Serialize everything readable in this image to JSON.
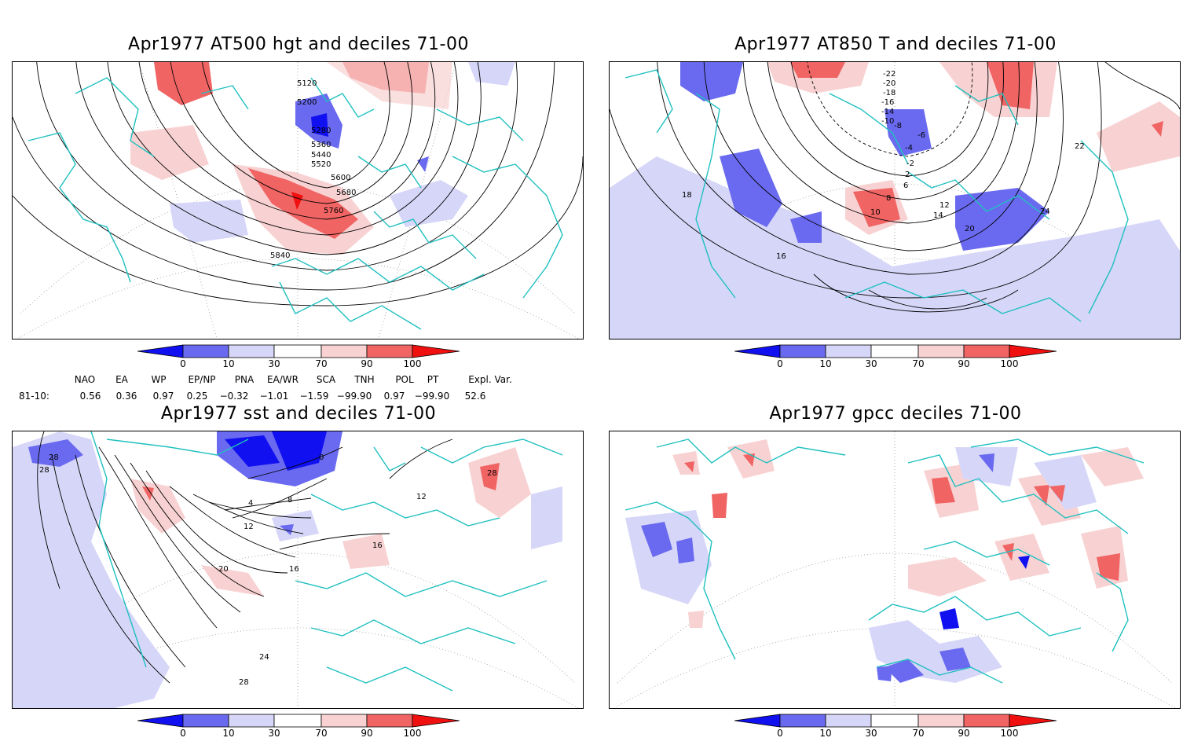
{
  "colors": {
    "dark_blue": "#1010f0",
    "mid_blue": "#6a6af0",
    "light_blue": "#d6d6f8",
    "light_red": "#f8d2d2",
    "mid_red": "#f06464",
    "dark_red": "#f01010",
    "coast": "#20c0c0",
    "contour": "#000000",
    "grid": "#888888"
  },
  "colorbar": {
    "ticks": [
      "0",
      "10",
      "30",
      "70",
      "90",
      "100"
    ]
  },
  "panels": [
    {
      "id": "hgt500",
      "title": "Apr1977 AT500 hgt and deciles 71-00",
      "contour_labels": [
        "5120",
        "5200",
        "5280",
        "5360",
        "5440",
        "5520",
        "5600",
        "5680",
        "5760",
        "5840"
      ]
    },
    {
      "id": "t850",
      "title": "Apr1977 AT850 T and deciles 71-00",
      "contour_labels": [
        "-22",
        "-20",
        "-18",
        "-16",
        "-14",
        "-10",
        "-8",
        "-6",
        "-4",
        "-2",
        "2",
        "6",
        "8",
        "10",
        "12",
        "14",
        "16",
        "18",
        "20",
        "22",
        "24"
      ]
    },
    {
      "id": "sst",
      "title": "Apr1977 sst and deciles 71-00",
      "contour_labels": [
        "28",
        "28",
        "0",
        "4",
        "8",
        "12",
        "16",
        "16",
        "20",
        "24",
        "28",
        "12",
        "28"
      ]
    },
    {
      "id": "gpcc",
      "title": "Apr1977 gpcc deciles 71-00",
      "contour_labels": []
    }
  ],
  "indices": {
    "row_label": "81-10:",
    "names": [
      "NAO",
      "EA",
      "WP",
      "EP/NP",
      "PNA",
      "EA/WR",
      "SCA",
      "TNH",
      "POL",
      "PT",
      "Expl. Var."
    ],
    "values": [
      "0.56",
      "0.36",
      "0.97",
      "0.25",
      "−0.32",
      "−1.01",
      "−1.59",
      "−99.90",
      "0.97",
      "−99.90",
      "52.6"
    ]
  }
}
